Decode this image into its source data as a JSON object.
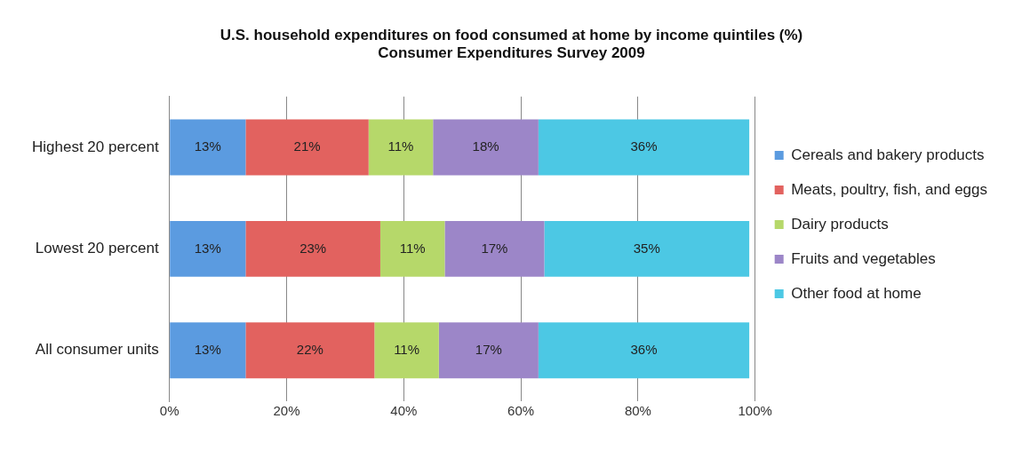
{
  "chart_data": {
    "type": "bar",
    "orientation": "horizontal",
    "stacked": true,
    "title": "U.S. household expenditures on food consumed at home by income quintiles (%)",
    "subtitle": "Consumer Expenditures Survey 2009",
    "categories": [
      "Highest 20 percent",
      "Lowest 20 percent",
      "All consumer units"
    ],
    "series": [
      {
        "name": "Cereals and bakery products",
        "color": "#5b9be0",
        "values": [
          13,
          13,
          13
        ],
        "value_labels": [
          "13%",
          "13%",
          "13%"
        ]
      },
      {
        "name": "Meats, poultry, fish, and eggs",
        "color": "#e2625f",
        "values": [
          21,
          23,
          22
        ],
        "value_labels": [
          "21%",
          "23%",
          "22%"
        ]
      },
      {
        "name": "Dairy products",
        "color": "#b6d86a",
        "values": [
          11,
          11,
          11
        ],
        "value_labels": [
          "11%",
          "11%",
          "11%"
        ]
      },
      {
        "name": "Fruits and vegetables",
        "color": "#9c86c8",
        "values": [
          18,
          17,
          17
        ],
        "value_labels": [
          "18%",
          "17%",
          "17%"
        ]
      },
      {
        "name": "Other food at home",
        "color": "#4cc8e4",
        "values": [
          36,
          35,
          36
        ],
        "value_labels": [
          "36%",
          "35%",
          "36%"
        ]
      }
    ],
    "xlim": [
      0,
      100
    ],
    "xticks": [
      {
        "value": 0,
        "label": "0%"
      },
      {
        "value": 20,
        "label": "20%"
      },
      {
        "value": 40,
        "label": "40%"
      },
      {
        "value": 60,
        "label": "60%"
      },
      {
        "value": 80,
        "label": "80%"
      },
      {
        "value": 100,
        "label": "100%"
      }
    ],
    "grid": "x",
    "legend": "right"
  }
}
